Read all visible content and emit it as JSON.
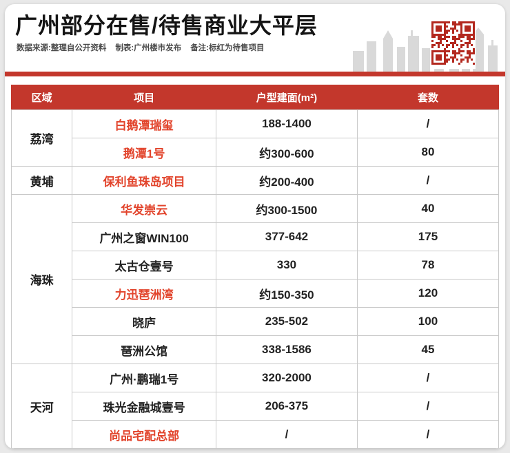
{
  "colors": {
    "accent": "#c3372c",
    "presale": "#e2442c",
    "qr": "#b3281e",
    "skyline": "#d9d9d9"
  },
  "header": {
    "title": "广州部分在售/待售商业大平层",
    "source": "数据来源:整理自公开资料",
    "maker": "制表:广州楼市发布",
    "note": "备注:标红为待售项目"
  },
  "icons": {
    "qr_code": "qr-code",
    "skyline": "city-skyline"
  },
  "table": {
    "columns": [
      "区域",
      "项目",
      "户型建面(m²)",
      "套数"
    ],
    "groups": [
      {
        "region": "荔湾",
        "rows": [
          {
            "project": "白鹅潭瑞玺",
            "area": "188-1400",
            "units": "/",
            "presale": true
          },
          {
            "project": "鹅潭1号",
            "area": "约300-600",
            "units": "80",
            "presale": true
          }
        ]
      },
      {
        "region": "黄埔",
        "rows": [
          {
            "project": "保利鱼珠岛项目",
            "area": "约200-400",
            "units": "/",
            "presale": true
          }
        ]
      },
      {
        "region": "海珠",
        "rows": [
          {
            "project": "华发崇云",
            "area": "约300-1500",
            "units": "40",
            "presale": true
          },
          {
            "project": "广州之窗WIN100",
            "area": "377-642",
            "units": "175",
            "presale": false
          },
          {
            "project": "太古仓壹号",
            "area": "330",
            "units": "78",
            "presale": false
          },
          {
            "project": "力迅琶洲湾",
            "area": "约150-350",
            "units": "120",
            "presale": true
          },
          {
            "project": "晓庐",
            "area": "235-502",
            "units": "100",
            "presale": false
          },
          {
            "project": "琶洲公馆",
            "area": "338-1586",
            "units": "45",
            "presale": false
          }
        ]
      },
      {
        "region": "天河",
        "rows": [
          {
            "project": "广州·鹏瑞1号",
            "area": "320-2000",
            "units": "/",
            "presale": false
          },
          {
            "project": "珠光金融城壹号",
            "area": "206-375",
            "units": "/",
            "presale": false
          },
          {
            "project": "尚品宅配总部",
            "area": "/",
            "units": "/",
            "presale": true
          }
        ]
      }
    ]
  },
  "chart_data": {
    "type": "table",
    "title": "广州部分在售/待售商业大平层",
    "columns": [
      "区域",
      "项目",
      "户型建面(m²)",
      "套数"
    ],
    "rows": [
      [
        "荔湾",
        "白鹅潭瑞玺",
        "188-1400",
        "/"
      ],
      [
        "荔湾",
        "鹅潭1号",
        "约300-600",
        "80"
      ],
      [
        "黄埔",
        "保利鱼珠岛项目",
        "约200-400",
        "/"
      ],
      [
        "海珠",
        "华发崇云",
        "约300-1500",
        "40"
      ],
      [
        "海珠",
        "广州之窗WIN100",
        "377-642",
        "175"
      ],
      [
        "海珠",
        "太古仓壹号",
        "330",
        "78"
      ],
      [
        "海珠",
        "力迅琶洲湾",
        "约150-350",
        "120"
      ],
      [
        "海珠",
        "晓庐",
        "235-502",
        "100"
      ],
      [
        "海珠",
        "琶洲公馆",
        "338-1586",
        "45"
      ],
      [
        "天河",
        "广州·鹏瑞1号",
        "320-2000",
        "/"
      ],
      [
        "天河",
        "珠光金融城壹号",
        "206-375",
        "/"
      ],
      [
        "天河",
        "尚品宅配总部",
        "/",
        "/"
      ]
    ],
    "highlighted_red_rows": [
      "白鹅潭瑞玺",
      "鹅潭1号",
      "保利鱼珠岛项目",
      "华发崇云",
      "力迅琶洲湾",
      "尚品宅配总部"
    ],
    "notes": "标红为待售项目"
  }
}
